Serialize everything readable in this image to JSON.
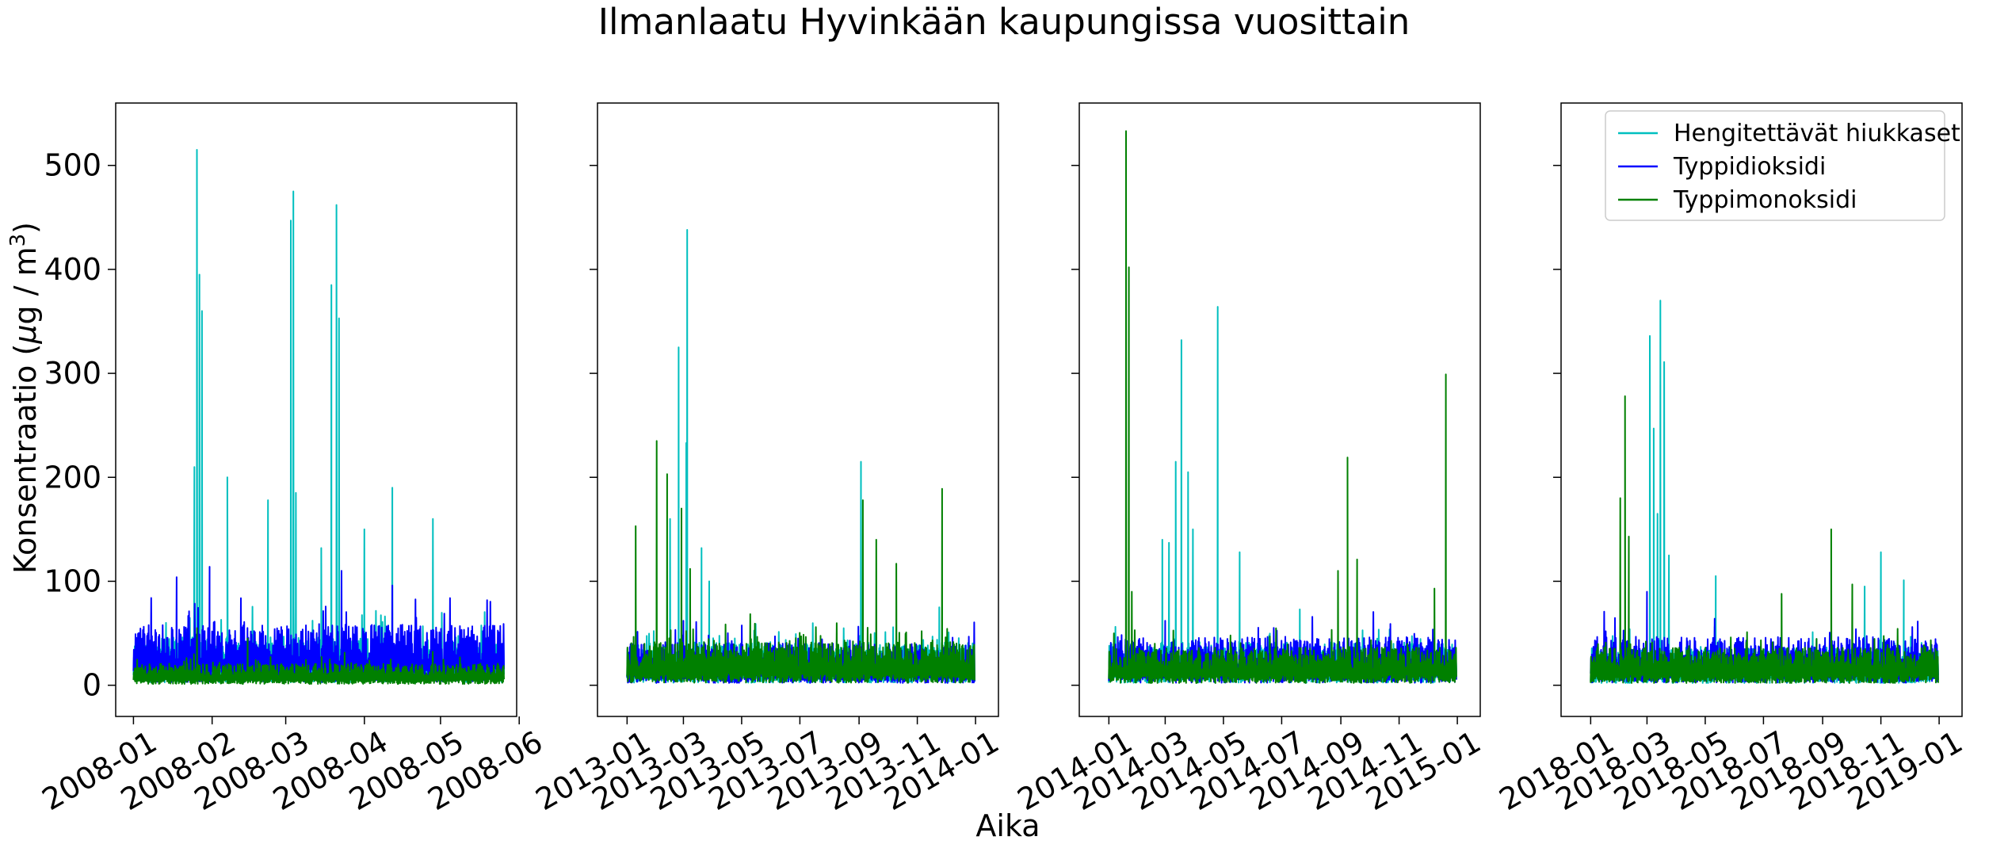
{
  "chart_data": {
    "type": "line",
    "title": "Ilmanlaatu Hyvinkään kaupungissa vuosittain",
    "xlabel": "Aika",
    "ylabel_prefix": "Konsentraatio (",
    "ylabel_mu": "μ",
    "ylabel_mid": "g / m",
    "ylabel_sup": "3",
    "ylabel_suffix": ")",
    "ylim": [
      -30,
      560
    ],
    "yticks": [
      0,
      100,
      200,
      300,
      400,
      500
    ],
    "shared_y": true,
    "grid": false,
    "legend_placement": "top-right of last panel",
    "series_styles": [
      {
        "name": "Hengitettävät hiukkaset",
        "color": "#00bfbf"
      },
      {
        "name": "Typpidioksidi",
        "color": "#0000ff"
      },
      {
        "name": "Typpimonoksidi",
        "color": "#008000"
      }
    ],
    "panels": [
      {
        "xlim": [
          "2007-12-25",
          "2008-05-31"
        ],
        "data_range": [
          "2008-01-01",
          "2008-05-26"
        ],
        "xticks": [
          "2008-01",
          "2008-02",
          "2008-03",
          "2008-04",
          "2008-05",
          "2008-06"
        ],
        "baselines": [
          18,
          20,
          8
        ],
        "peaks": [
          {
            "series": 0,
            "date": "2008-01-26",
            "value": 515
          },
          {
            "series": 0,
            "date": "2008-01-27",
            "value": 395
          },
          {
            "series": 0,
            "date": "2008-01-28",
            "value": 360
          },
          {
            "series": 0,
            "date": "2008-01-25",
            "value": 210
          },
          {
            "series": 0,
            "date": "2008-02-07",
            "value": 200
          },
          {
            "series": 0,
            "date": "2008-02-23",
            "value": 178
          },
          {
            "series": 0,
            "date": "2008-03-03",
            "value": 447
          },
          {
            "series": 0,
            "date": "2008-03-04",
            "value": 475
          },
          {
            "series": 0,
            "date": "2008-03-05",
            "value": 185
          },
          {
            "series": 0,
            "date": "2008-03-15",
            "value": 132
          },
          {
            "series": 0,
            "date": "2008-03-19",
            "value": 385
          },
          {
            "series": 0,
            "date": "2008-03-21",
            "value": 462
          },
          {
            "series": 0,
            "date": "2008-03-22",
            "value": 353
          },
          {
            "series": 0,
            "date": "2008-04-01",
            "value": 150
          },
          {
            "series": 0,
            "date": "2008-04-12",
            "value": 190
          },
          {
            "series": 0,
            "date": "2008-04-28",
            "value": 160
          },
          {
            "series": 1,
            "date": "2008-01-18",
            "value": 104
          },
          {
            "series": 1,
            "date": "2008-01-31",
            "value": 114
          },
          {
            "series": 1,
            "date": "2008-03-23",
            "value": 110
          },
          {
            "series": 1,
            "date": "2008-04-12",
            "value": 96
          },
          {
            "series": 2,
            "date": "2008-01-26",
            "value": 55
          },
          {
            "series": 2,
            "date": "2008-02-15",
            "value": 45
          }
        ]
      },
      {
        "xlim": [
          "2012-12-01",
          "2014-01-25"
        ],
        "data_range": [
          "2013-01-01",
          "2013-12-31"
        ],
        "xticks": [
          "2013-01",
          "2013-03",
          "2013-05",
          "2013-07",
          "2013-09",
          "2013-11",
          "2014-01"
        ],
        "baselines": [
          16,
          14,
          16
        ],
        "peaks": [
          {
            "series": 0,
            "date": "2013-02-24",
            "value": 325
          },
          {
            "series": 0,
            "date": "2013-03-05",
            "value": 438
          },
          {
            "series": 0,
            "date": "2013-03-04",
            "value": 233
          },
          {
            "series": 0,
            "date": "2013-02-15",
            "value": 160
          },
          {
            "series": 0,
            "date": "2013-03-20",
            "value": 132
          },
          {
            "series": 0,
            "date": "2013-03-28",
            "value": 100
          },
          {
            "series": 0,
            "date": "2013-09-03",
            "value": 215
          },
          {
            "series": 0,
            "date": "2013-11-24",
            "value": 75
          },
          {
            "series": 2,
            "date": "2013-01-10",
            "value": 153
          },
          {
            "series": 2,
            "date": "2013-02-01",
            "value": 235
          },
          {
            "series": 2,
            "date": "2013-02-12",
            "value": 203
          },
          {
            "series": 2,
            "date": "2013-02-27",
            "value": 170
          },
          {
            "series": 2,
            "date": "2013-03-08",
            "value": 112
          },
          {
            "series": 2,
            "date": "2013-09-05",
            "value": 178
          },
          {
            "series": 2,
            "date": "2013-09-19",
            "value": 140
          },
          {
            "series": 2,
            "date": "2013-10-10",
            "value": 117
          },
          {
            "series": 2,
            "date": "2013-11-27",
            "value": 189
          },
          {
            "series": 1,
            "date": "2013-03-01",
            "value": 62
          }
        ]
      },
      {
        "xlim": [
          "2013-12-01",
          "2015-01-25"
        ],
        "data_range": [
          "2014-01-01",
          "2014-12-31"
        ],
        "xticks": [
          "2014-01",
          "2014-03",
          "2014-05",
          "2014-07",
          "2014-09",
          "2014-11",
          "2015-01"
        ],
        "baselines": [
          16,
          16,
          14
        ],
        "peaks": [
          {
            "series": 2,
            "date": "2014-01-19",
            "value": 533
          },
          {
            "series": 2,
            "date": "2014-01-22",
            "value": 402
          },
          {
            "series": 2,
            "date": "2014-01-25",
            "value": 90
          },
          {
            "series": 0,
            "date": "2014-02-26",
            "value": 140
          },
          {
            "series": 0,
            "date": "2014-03-05",
            "value": 137
          },
          {
            "series": 0,
            "date": "2014-03-12",
            "value": 215
          },
          {
            "series": 0,
            "date": "2014-03-18",
            "value": 332
          },
          {
            "series": 0,
            "date": "2014-03-25",
            "value": 205
          },
          {
            "series": 0,
            "date": "2014-03-30",
            "value": 150
          },
          {
            "series": 0,
            "date": "2014-04-25",
            "value": 364
          },
          {
            "series": 0,
            "date": "2014-05-18",
            "value": 128
          },
          {
            "series": 0,
            "date": "2014-07-20",
            "value": 73
          },
          {
            "series": 2,
            "date": "2014-08-29",
            "value": 110
          },
          {
            "series": 2,
            "date": "2014-09-08",
            "value": 219
          },
          {
            "series": 2,
            "date": "2014-09-18",
            "value": 121
          },
          {
            "series": 2,
            "date": "2014-12-20",
            "value": 299
          },
          {
            "series": 2,
            "date": "2014-12-08",
            "value": 93
          },
          {
            "series": 1,
            "date": "2014-03-01",
            "value": 62
          }
        ]
      },
      {
        "xlim": [
          "2017-12-01",
          "2019-01-25"
        ],
        "data_range": [
          "2018-01-01",
          "2018-12-31"
        ],
        "xticks": [
          "2018-01",
          "2018-03",
          "2018-05",
          "2018-07",
          "2018-09",
          "2018-11",
          "2019-01"
        ],
        "baselines": [
          14,
          16,
          14
        ],
        "peaks": [
          {
            "series": 2,
            "date": "2018-02-06",
            "value": 278
          },
          {
            "series": 2,
            "date": "2018-02-01",
            "value": 180
          },
          {
            "series": 2,
            "date": "2018-02-10",
            "value": 143
          },
          {
            "series": 0,
            "date": "2018-03-04",
            "value": 336
          },
          {
            "series": 0,
            "date": "2018-03-08",
            "value": 247
          },
          {
            "series": 0,
            "date": "2018-03-15",
            "value": 370
          },
          {
            "series": 0,
            "date": "2018-03-19",
            "value": 311
          },
          {
            "series": 0,
            "date": "2018-03-12",
            "value": 165
          },
          {
            "series": 0,
            "date": "2018-03-24",
            "value": 125
          },
          {
            "series": 0,
            "date": "2018-05-12",
            "value": 105
          },
          {
            "series": 0,
            "date": "2018-11-01",
            "value": 128
          },
          {
            "series": 0,
            "date": "2018-11-25",
            "value": 101
          },
          {
            "series": 0,
            "date": "2018-10-15",
            "value": 95
          },
          {
            "series": 2,
            "date": "2018-07-20",
            "value": 88
          },
          {
            "series": 2,
            "date": "2018-09-10",
            "value": 150
          },
          {
            "series": 2,
            "date": "2018-10-02",
            "value": 97
          },
          {
            "series": 1,
            "date": "2018-03-01",
            "value": 90
          }
        ]
      }
    ],
    "legend": [
      {
        "label": "Hengitettävät hiukkaset",
        "color": "#00bfbf"
      },
      {
        "label": "Typpidioksidi",
        "color": "#0000ff"
      },
      {
        "label": "Typpimonoksidi",
        "color": "#008000"
      }
    ]
  }
}
